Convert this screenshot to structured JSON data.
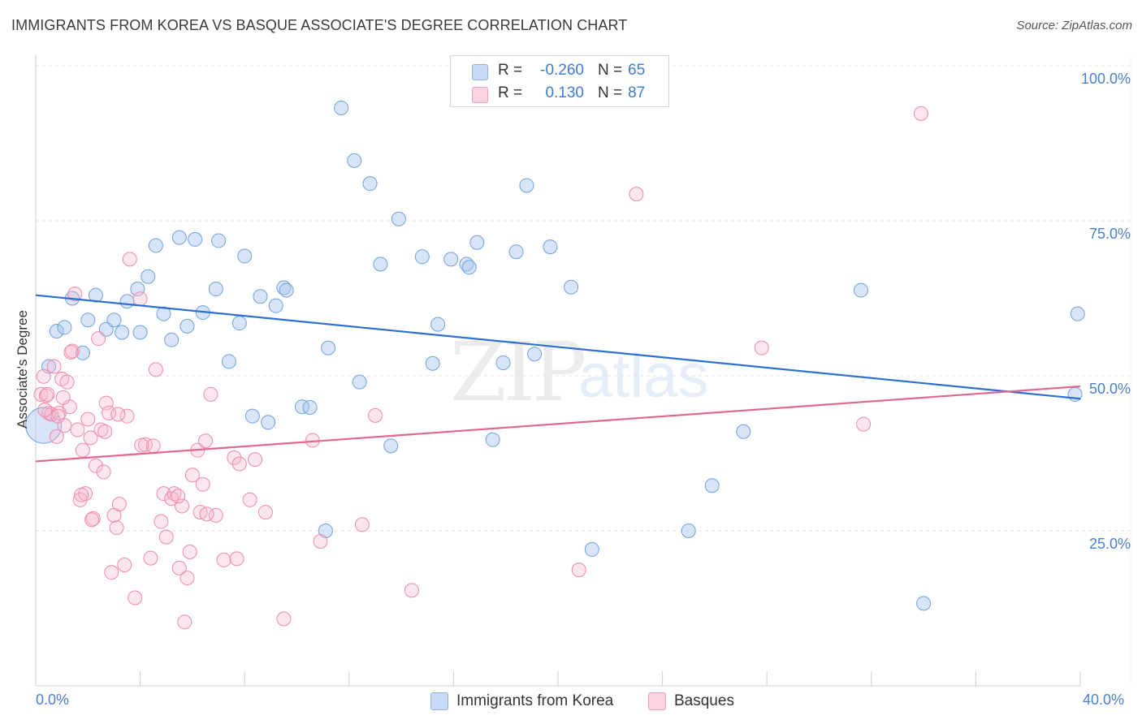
{
  "header": {
    "title": "IMMIGRANTS FROM KOREA VS BASQUE ASSOCIATE'S DEGREE CORRELATION CHART",
    "source": "Source: ZipAtlas.com"
  },
  "watermark": {
    "zip": "ZIP",
    "atlas": "atlas"
  },
  "legend": {
    "rows": [
      {
        "r_label": "R =",
        "r_value": "-0.260",
        "n_label": "N =",
        "n_value": "65",
        "color": "#a9c6f0",
        "text_color": "#3f7bd4"
      },
      {
        "r_label": "R =",
        "r_value": "0.130",
        "n_label": "N =",
        "n_value": "87",
        "color": "#f7b6cb",
        "text_color": "#3f7bd4"
      }
    ]
  },
  "bottom_legend": {
    "items": [
      {
        "label": "Immigrants from Korea",
        "color": "#a9c6f0"
      },
      {
        "label": "Basques",
        "color": "#f7b6cb"
      }
    ]
  },
  "axes": {
    "ylabel": "Associate's Degree",
    "y_ticks": [
      "100.0%",
      "75.0%",
      "50.0%",
      "25.0%"
    ],
    "x_ticks": [
      "0.0%",
      "40.0%"
    ]
  },
  "chart_data": {
    "type": "scatter",
    "title": "IMMIGRANTS FROM KOREA VS BASQUE ASSOCIATE'S DEGREE CORRELATION CHART",
    "xlabel": "",
    "ylabel": "Associate's Degree",
    "xlim": [
      0,
      40
    ],
    "ylim": [
      0,
      100
    ],
    "grid": true,
    "colors": {
      "korea": "#6fa0e0",
      "korea_line": "#2f6fd0",
      "basques": "#ef8aaa",
      "basques_line": "#e0678f"
    },
    "series": [
      {
        "name": "Immigrants from Korea",
        "trend": {
          "x": [
            0,
            40
          ],
          "y": [
            63,
            46.3
          ]
        },
        "points": [
          [
            0.3,
            42.0
          ],
          [
            0.5,
            51.5
          ],
          [
            0.8,
            57.2
          ],
          [
            1.1,
            57.8
          ],
          [
            1.4,
            62.5
          ],
          [
            1.8,
            53.7
          ],
          [
            2.0,
            59.0
          ],
          [
            2.3,
            63.0
          ],
          [
            2.7,
            57.5
          ],
          [
            3.0,
            59.0
          ],
          [
            3.3,
            57.0
          ],
          [
            3.5,
            62.0
          ],
          [
            3.9,
            64.0
          ],
          [
            4.0,
            57.0
          ],
          [
            4.3,
            66.0
          ],
          [
            4.6,
            71.0
          ],
          [
            4.9,
            60.0
          ],
          [
            5.2,
            55.8
          ],
          [
            5.5,
            72.3
          ],
          [
            5.8,
            58.0
          ],
          [
            6.1,
            72.0
          ],
          [
            6.4,
            60.2
          ],
          [
            6.9,
            64.0
          ],
          [
            7.0,
            71.8
          ],
          [
            7.4,
            52.3
          ],
          [
            7.8,
            58.5
          ],
          [
            8.0,
            69.3
          ],
          [
            8.3,
            43.5
          ],
          [
            8.6,
            62.8
          ],
          [
            8.9,
            42.5
          ],
          [
            9.2,
            61.3
          ],
          [
            9.5,
            64.2
          ],
          [
            9.6,
            63.8
          ],
          [
            10.2,
            45.0
          ],
          [
            10.5,
            44.9
          ],
          [
            11.1,
            25.0
          ],
          [
            11.2,
            54.5
          ],
          [
            11.7,
            93.2
          ],
          [
            12.2,
            84.7
          ],
          [
            12.4,
            49.0
          ],
          [
            12.8,
            81.0
          ],
          [
            13.2,
            68.0
          ],
          [
            13.6,
            38.7
          ],
          [
            13.9,
            75.3
          ],
          [
            14.8,
            69.2
          ],
          [
            15.2,
            52.0
          ],
          [
            15.4,
            58.3
          ],
          [
            15.9,
            68.8
          ],
          [
            16.5,
            68.0
          ],
          [
            16.6,
            67.5
          ],
          [
            16.9,
            71.5
          ],
          [
            17.5,
            39.7
          ],
          [
            17.9,
            52.1
          ],
          [
            18.4,
            70.0
          ],
          [
            18.8,
            80.7
          ],
          [
            19.1,
            53.5
          ],
          [
            19.7,
            70.8
          ],
          [
            20.5,
            64.3
          ],
          [
            21.3,
            22.0
          ],
          [
            25.0,
            25.0
          ],
          [
            25.9,
            32.3
          ],
          [
            27.1,
            41.0
          ],
          [
            31.6,
            63.8
          ],
          [
            34.0,
            13.3
          ],
          [
            39.9,
            60.0
          ],
          [
            39.8,
            47.0
          ]
        ]
      },
      {
        "name": "Basques",
        "trend": {
          "x": [
            0,
            40
          ],
          "y": [
            36.2,
            48.3
          ]
        },
        "points": [
          [
            0.2,
            47.0
          ],
          [
            0.3,
            49.9
          ],
          [
            0.4,
            46.8
          ],
          [
            0.5,
            44.0
          ],
          [
            0.6,
            43.8
          ],
          [
            0.7,
            51.5
          ],
          [
            0.8,
            40.2
          ],
          [
            0.9,
            44.0
          ],
          [
            1.0,
            49.5
          ],
          [
            1.1,
            42.0
          ],
          [
            1.2,
            49.0
          ],
          [
            1.3,
            45.0
          ],
          [
            1.4,
            54.0
          ],
          [
            1.5,
            63.2
          ],
          [
            1.6,
            41.3
          ],
          [
            1.7,
            30.0
          ],
          [
            1.8,
            38.0
          ],
          [
            1.9,
            31.0
          ],
          [
            2.0,
            43.0
          ],
          [
            2.1,
            40.0
          ],
          [
            2.2,
            27.0
          ],
          [
            2.3,
            35.5
          ],
          [
            2.4,
            56.0
          ],
          [
            2.5,
            41.3
          ],
          [
            2.6,
            34.5
          ],
          [
            2.7,
            45.6
          ],
          [
            2.8,
            44.0
          ],
          [
            2.9,
            18.3
          ],
          [
            3.0,
            27.5
          ],
          [
            3.1,
            25.5
          ],
          [
            3.2,
            29.3
          ],
          [
            3.4,
            19.5
          ],
          [
            3.5,
            43.5
          ],
          [
            3.6,
            68.8
          ],
          [
            3.8,
            14.2
          ],
          [
            4.0,
            62.4
          ],
          [
            4.2,
            38.9
          ],
          [
            4.4,
            20.6
          ],
          [
            4.5,
            38.7
          ],
          [
            4.6,
            51.0
          ],
          [
            4.8,
            26.5
          ],
          [
            4.9,
            31.0
          ],
          [
            5.0,
            24.0
          ],
          [
            5.2,
            30.2
          ],
          [
            5.3,
            31.0
          ],
          [
            5.5,
            19.0
          ],
          [
            5.6,
            29.0
          ],
          [
            5.7,
            10.3
          ],
          [
            5.8,
            17.4
          ],
          [
            5.9,
            21.6
          ],
          [
            6.0,
            34.0
          ],
          [
            6.2,
            38.0
          ],
          [
            6.3,
            28.0
          ],
          [
            6.4,
            32.5
          ],
          [
            6.5,
            39.5
          ],
          [
            6.7,
            47.0
          ],
          [
            6.9,
            27.5
          ],
          [
            7.2,
            20.3
          ],
          [
            7.6,
            36.8
          ],
          [
            7.7,
            20.5
          ],
          [
            7.8,
            35.8
          ],
          [
            8.2,
            30.0
          ],
          [
            8.4,
            36.5
          ],
          [
            8.8,
            28.0
          ],
          [
            9.5,
            10.8
          ],
          [
            10.6,
            39.6
          ],
          [
            10.9,
            23.3
          ],
          [
            12.5,
            26.0
          ],
          [
            13.0,
            43.6
          ],
          [
            14.4,
            15.4
          ],
          [
            20.8,
            18.7
          ],
          [
            23.0,
            79.3
          ],
          [
            27.8,
            54.5
          ],
          [
            31.7,
            42.2
          ],
          [
            33.9,
            92.3
          ],
          [
            0.35,
            44.5
          ],
          [
            0.45,
            47.0
          ],
          [
            1.05,
            46.5
          ],
          [
            1.35,
            53.8
          ],
          [
            1.75,
            30.8
          ],
          [
            2.15,
            26.8
          ],
          [
            3.15,
            43.8
          ],
          [
            4.05,
            38.8
          ],
          [
            5.45,
            30.6
          ],
          [
            6.55,
            27.7
          ],
          [
            2.65,
            41.0
          ],
          [
            0.85,
            43.5
          ]
        ]
      }
    ]
  }
}
